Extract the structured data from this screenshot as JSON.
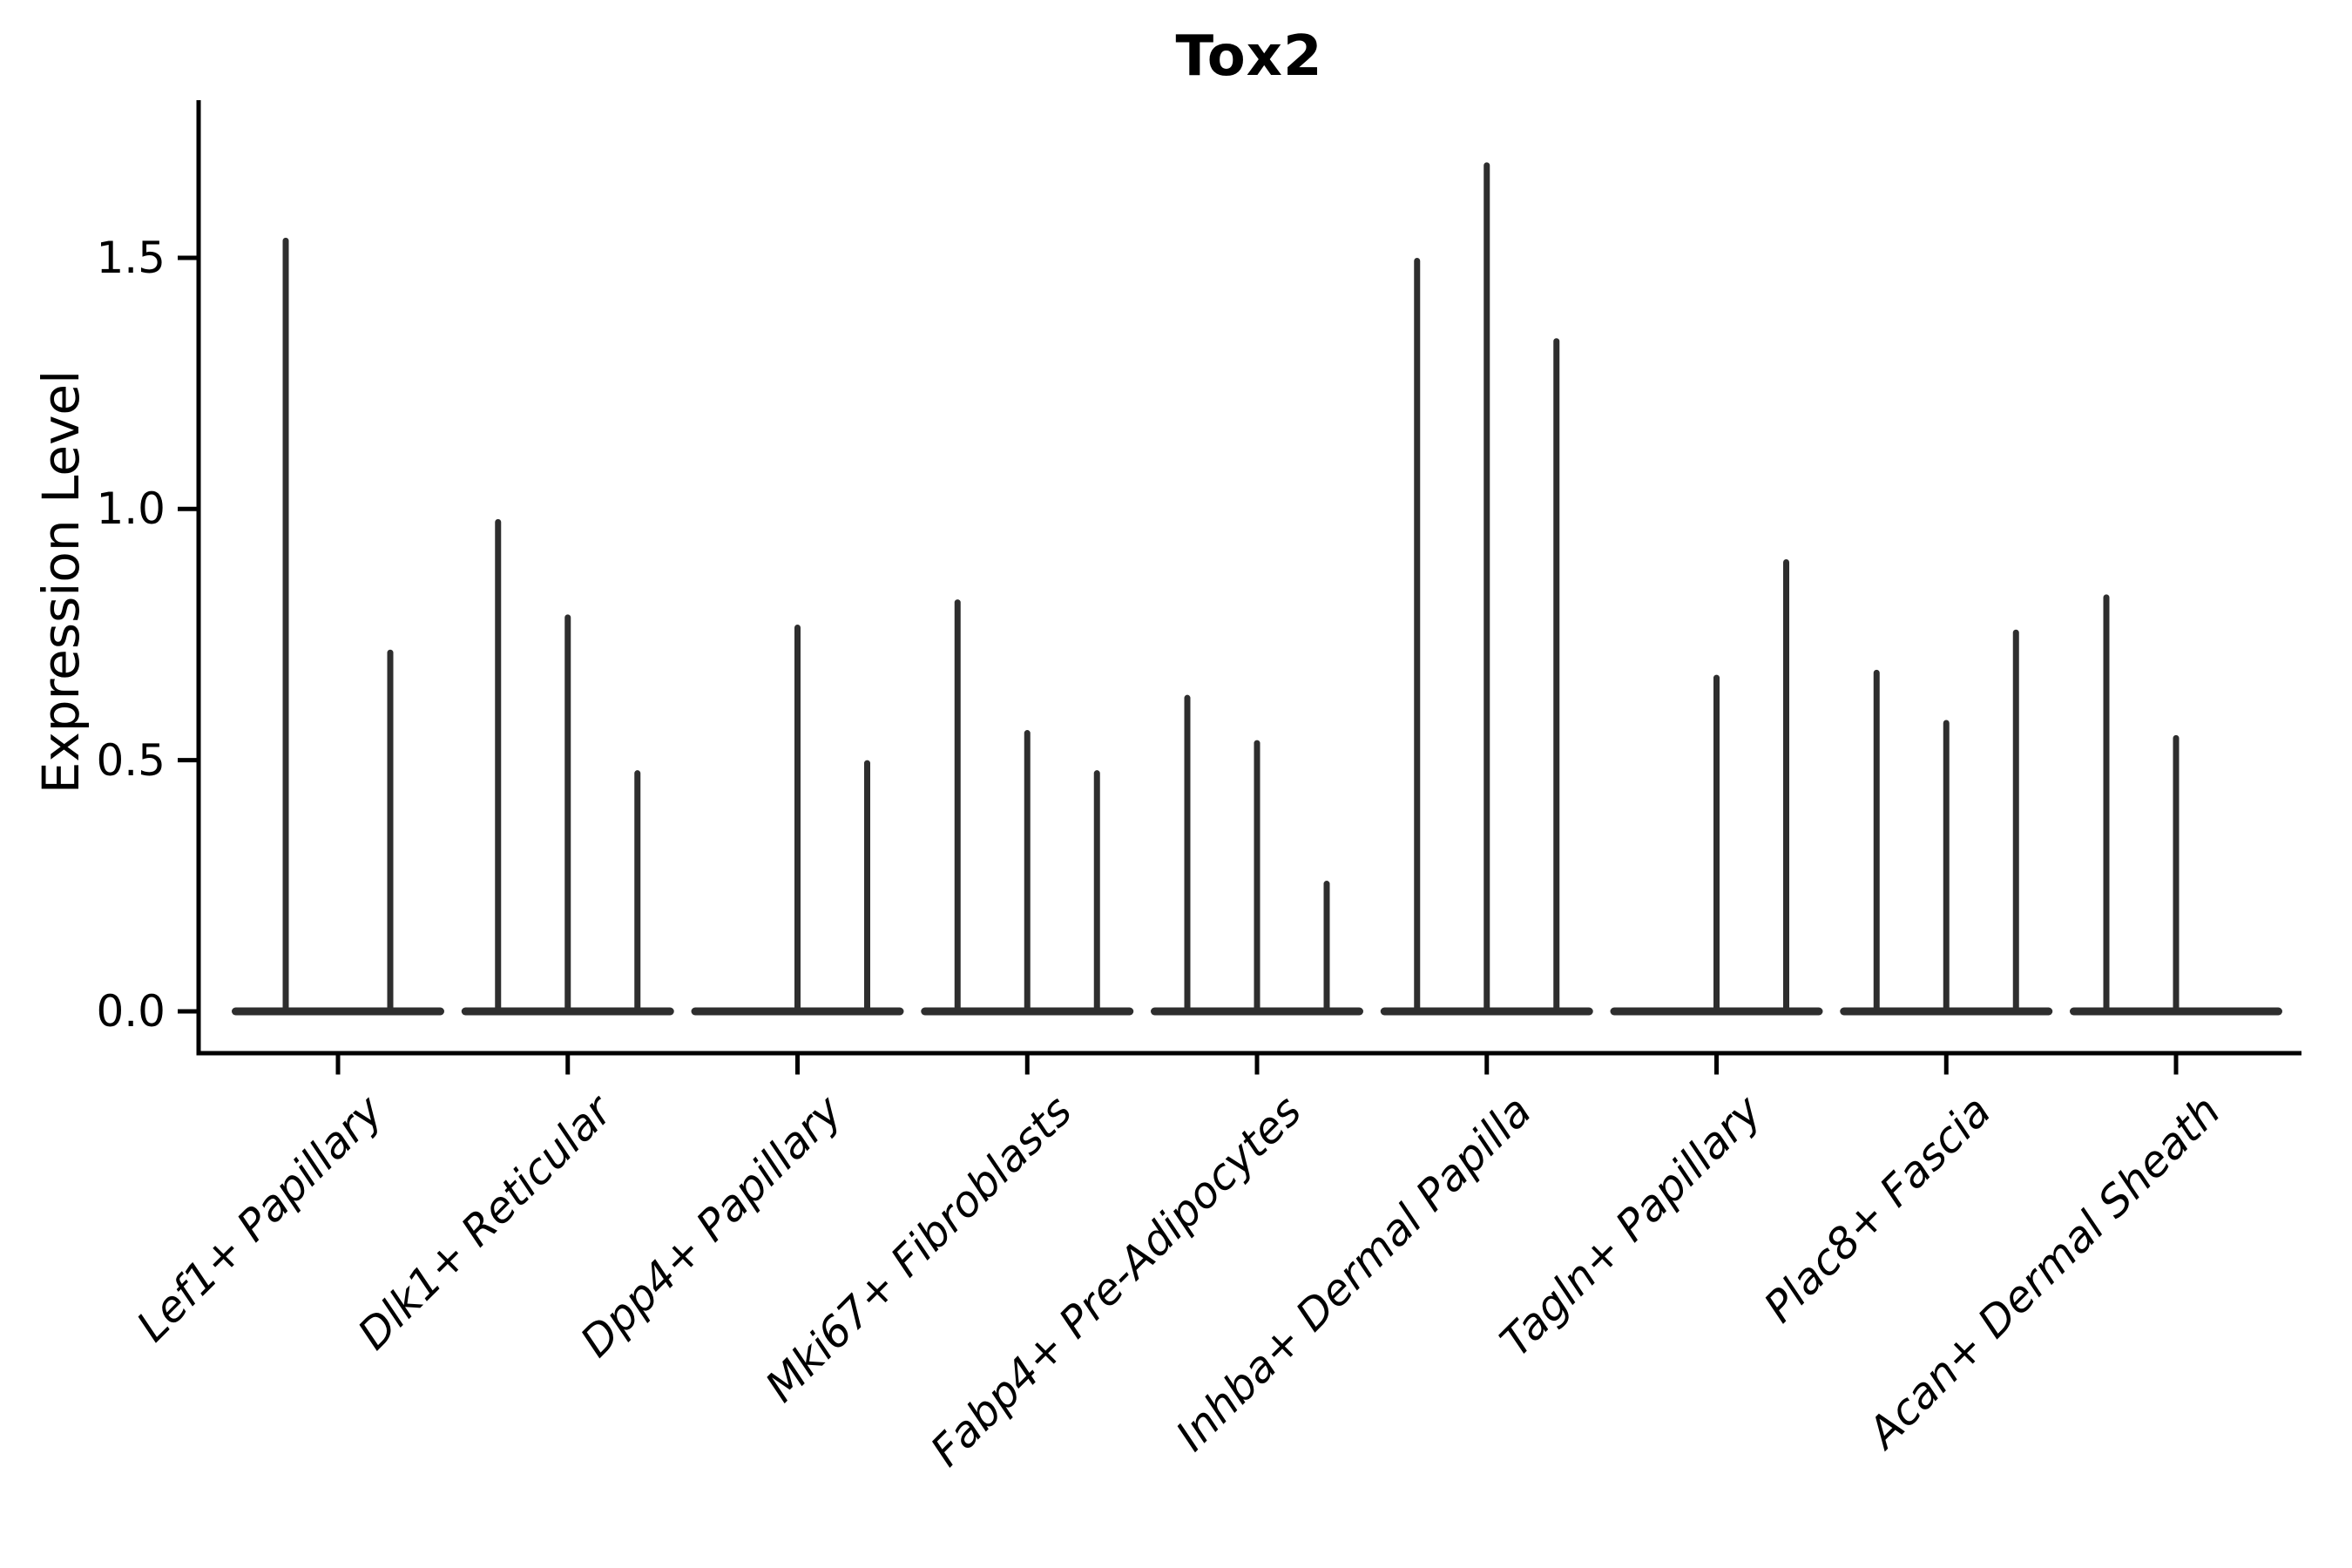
{
  "chart_data": {
    "type": "violin",
    "title": "Tox2",
    "ylabel": "Expression Level",
    "xlabel": "",
    "ylim": [
      0,
      1.81
    ],
    "yticks": [
      0.0,
      0.5,
      1.0,
      1.5
    ],
    "ytick_labels": [
      "0.0",
      "0.5",
      "1.0",
      "1.5"
    ],
    "grid": false,
    "legend": "none",
    "background_color": "#ffffff",
    "axis_color": "#000000",
    "violin_color": "#2e2e2e",
    "description": "Split violin plot of gene expression; violins are collapsed at 0 with thin density spikes reaching the listed maximum expression values. A spike height of 0 means that violin is flat at zero.",
    "categories": [
      "Lef1+ Papillary",
      "Dlk1+ Reticular",
      "Dpp4+ Papillary",
      "Mki67+ Fibroblasts",
      "Fabp4+ Pre-Adipocytes",
      "Inhba+ Dermal Papilla",
      "Tagln+ Papillary",
      "Plac8+ Fascia",
      "Acan+ Dermal Sheath"
    ],
    "groups": [
      {
        "label": "Lef1+ Papillary",
        "spike_heights": [
          1.54,
          0.72
        ]
      },
      {
        "label": "Dlk1+ Reticular",
        "spike_heights": [
          0.98,
          0.79,
          0.48
        ]
      },
      {
        "label": "Dpp4+ Papillary",
        "spike_heights": [
          0,
          0.77,
          0.5
        ]
      },
      {
        "label": "Mki67+ Fibroblasts",
        "spike_heights": [
          0.82,
          0.56,
          0.48
        ]
      },
      {
        "label": "Fabp4+ Pre-Adipocytes",
        "spike_heights": [
          0.63,
          0.54,
          0.26
        ]
      },
      {
        "label": "Inhba+ Dermal Papilla",
        "spike_heights": [
          1.5,
          1.69,
          1.34
        ]
      },
      {
        "label": "Tagln+ Papillary",
        "spike_heights": [
          0,
          0.67,
          0.9
        ]
      },
      {
        "label": "Plac8+ Fascia",
        "spike_heights": [
          0.68,
          0.58,
          0.76
        ]
      },
      {
        "label": "Acan+ Dermal Sheath",
        "spike_heights": [
          0.83,
          0.55,
          0
        ]
      }
    ]
  }
}
